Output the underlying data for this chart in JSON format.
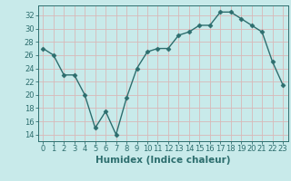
{
  "x": [
    0,
    1,
    2,
    3,
    4,
    5,
    6,
    7,
    8,
    9,
    10,
    11,
    12,
    13,
    14,
    15,
    16,
    17,
    18,
    19,
    20,
    21,
    22,
    23
  ],
  "y": [
    27,
    26,
    23,
    23,
    20,
    15,
    17.5,
    14,
    19.5,
    24,
    26.5,
    27,
    27,
    29,
    29.5,
    30.5,
    30.5,
    32.5,
    32.5,
    31.5,
    30.5,
    29.5,
    25,
    21.5
  ],
  "xlabel": "Humidex (Indice chaleur)",
  "xlim": [
    -0.5,
    23.5
  ],
  "ylim": [
    13,
    33.5
  ],
  "yticks": [
    14,
    16,
    18,
    20,
    22,
    24,
    26,
    28,
    30,
    32
  ],
  "xtick_labels": [
    "0",
    "1",
    "2",
    "3",
    "4",
    "5",
    "6",
    "7",
    "8",
    "9",
    "10",
    "11",
    "12",
    "13",
    "14",
    "15",
    "16",
    "17",
    "18",
    "19",
    "20",
    "21",
    "22",
    "23"
  ],
  "line_color": "#2d6e6e",
  "marker": "D",
  "marker_size": 2.5,
  "bg_color": "#c8eaea",
  "plot_bg_color": "#c8eaea",
  "grid_color": "#d8b8b8",
  "xlabel_fontsize": 7.5,
  "tick_fontsize": 6.0
}
